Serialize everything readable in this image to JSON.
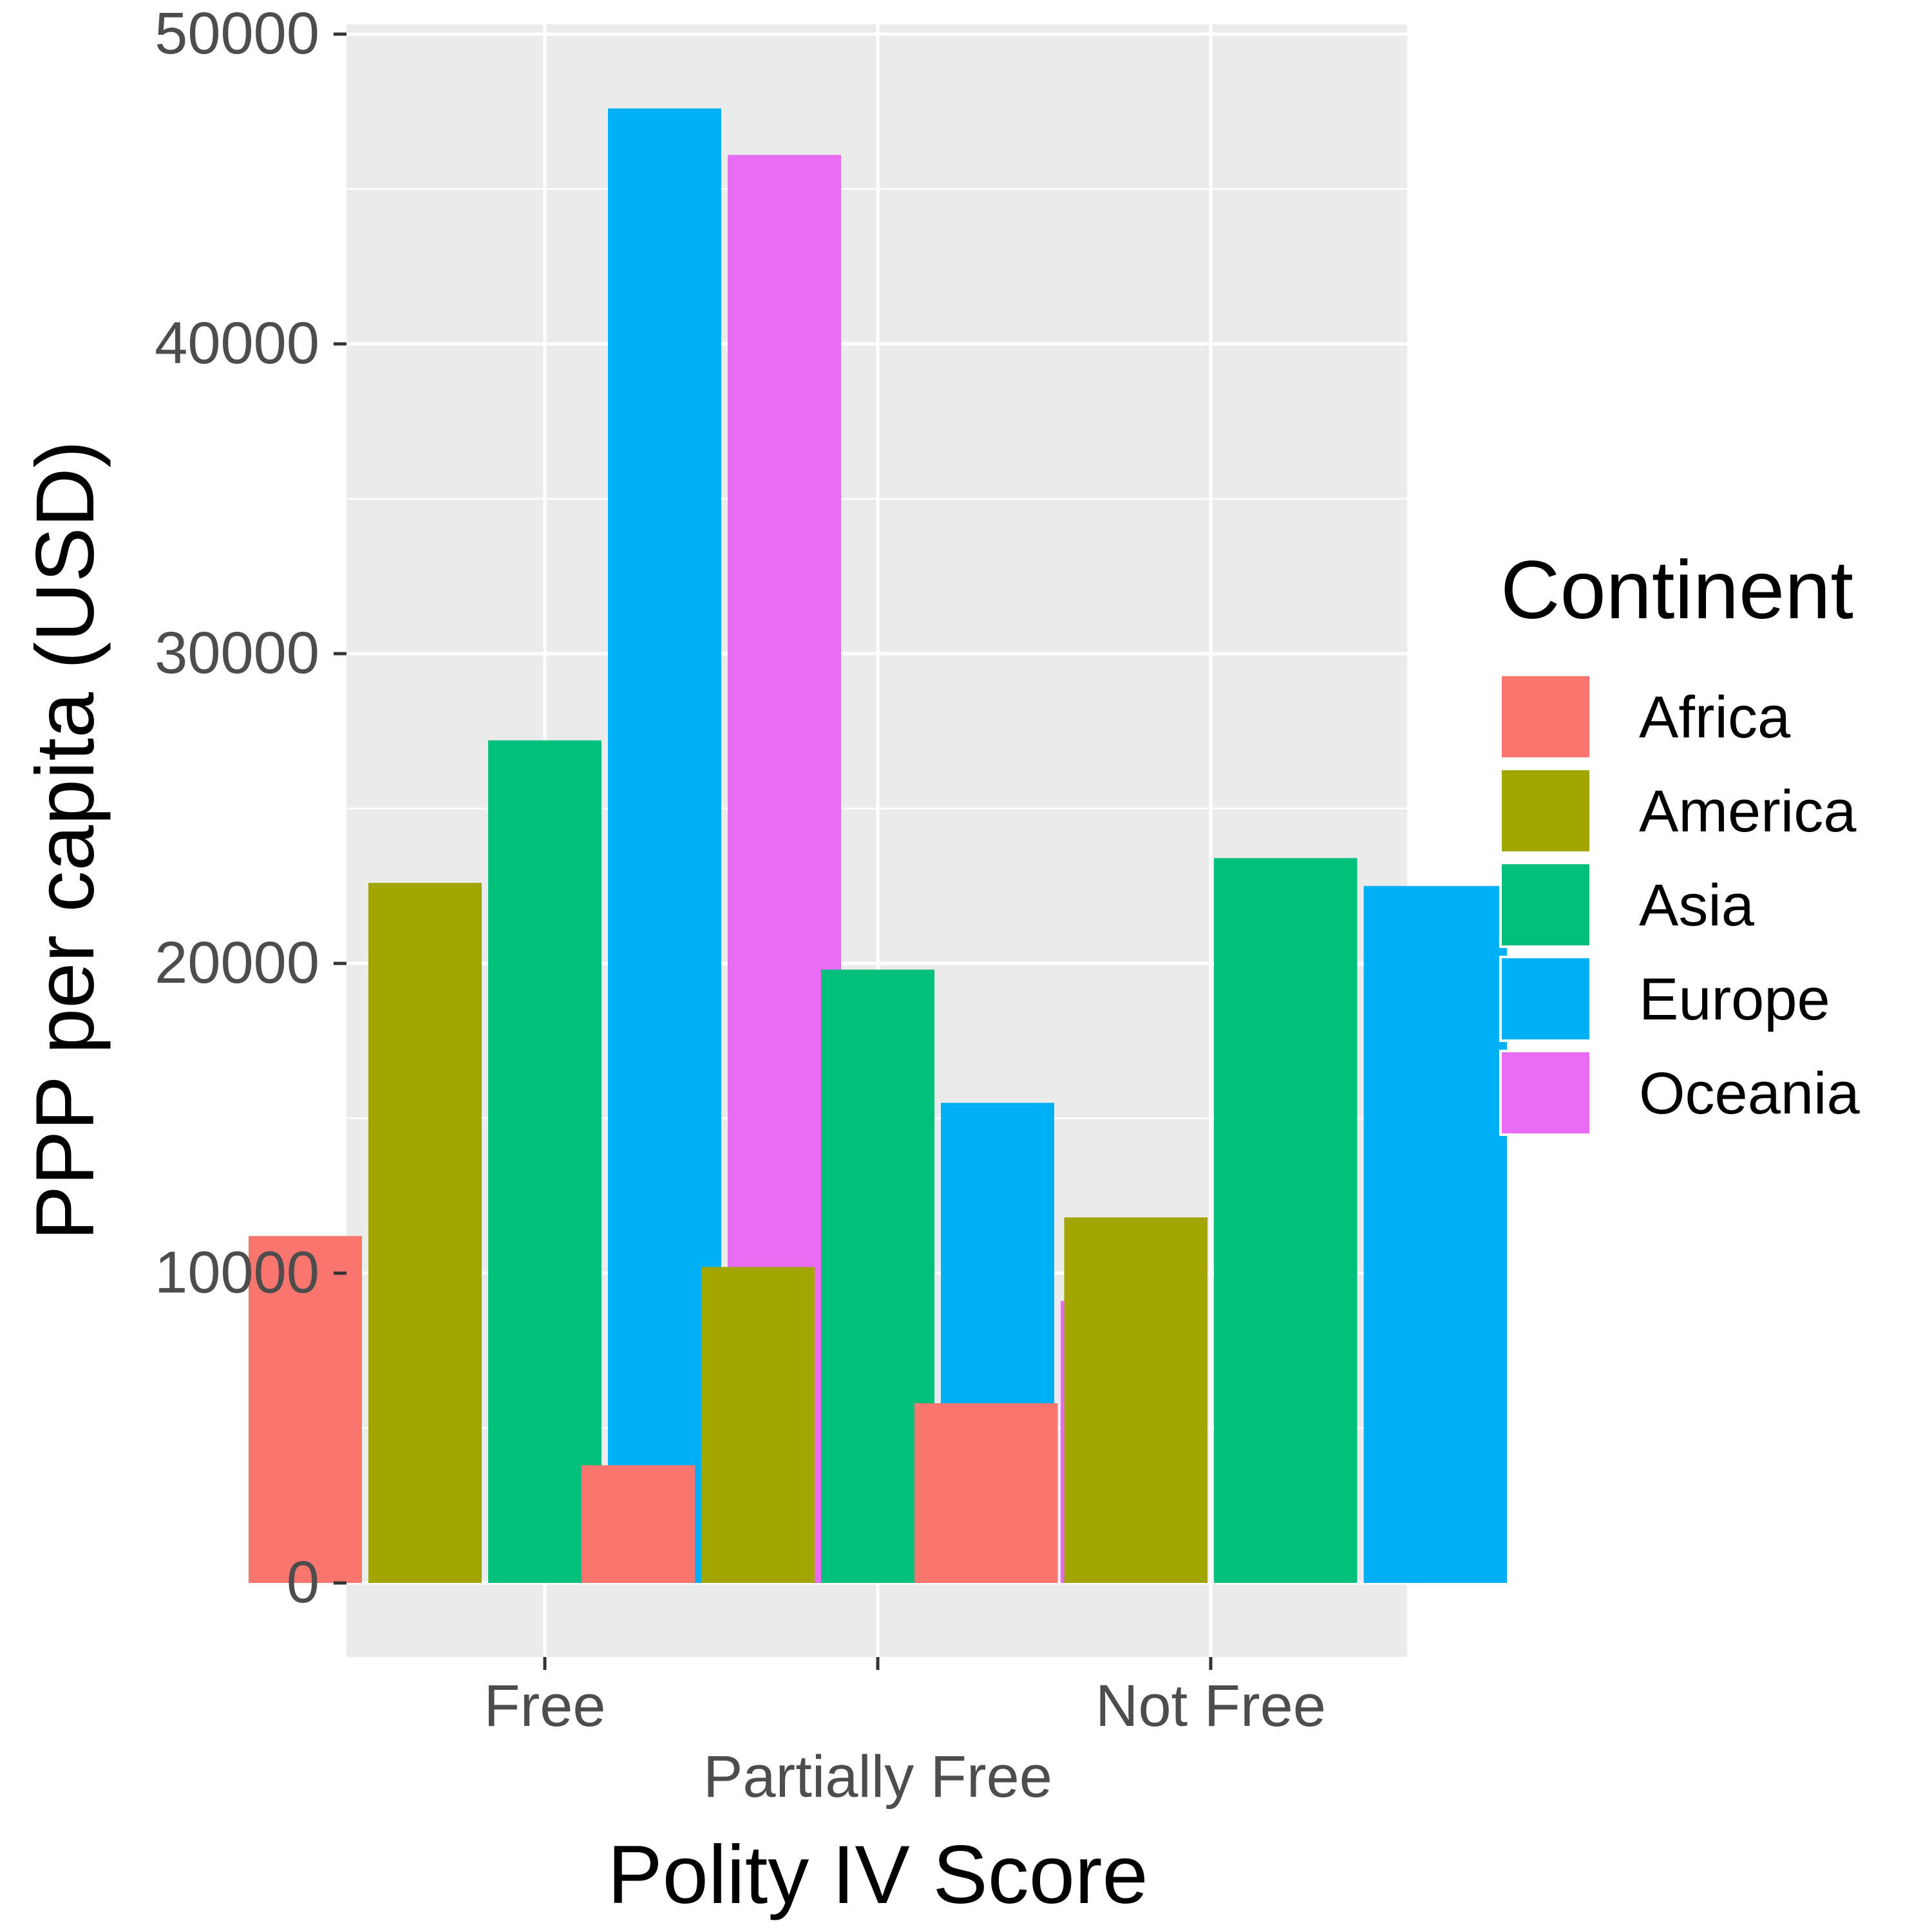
{
  "chart_data": {
    "type": "bar",
    "xlabel": "Polity IV Score",
    "ylabel": "PPP per capita (USD)",
    "categories": [
      "Free",
      "Partially Free",
      "Not Free"
    ],
    "ylim": [
      -2300,
      50000
    ],
    "yticks": [
      0,
      10000,
      20000,
      30000,
      40000,
      50000
    ],
    "yticks_labels": [
      "0",
      "10000",
      "20000",
      "30000",
      "40000",
      "50000"
    ],
    "grid": true,
    "background": "#ebebeb",
    "legend": {
      "title": "Continent",
      "position": "right"
    },
    "series": [
      {
        "name": "Africa",
        "color": "#F8766D",
        "values": [
          11200,
          3800,
          5800
        ]
      },
      {
        "name": "America",
        "color": "#A3A500",
        "values": [
          22600,
          10200,
          11800
        ]
      },
      {
        "name": "Asia",
        "color": "#00BF7D",
        "values": [
          27200,
          19800,
          23400
        ]
      },
      {
        "name": "Europe",
        "color": "#00B0F6",
        "values": [
          47600,
          15500,
          22500
        ]
      },
      {
        "name": "Oceania",
        "color": "#E76BF3",
        "values": [
          46100,
          9100,
          null
        ]
      }
    ]
  }
}
